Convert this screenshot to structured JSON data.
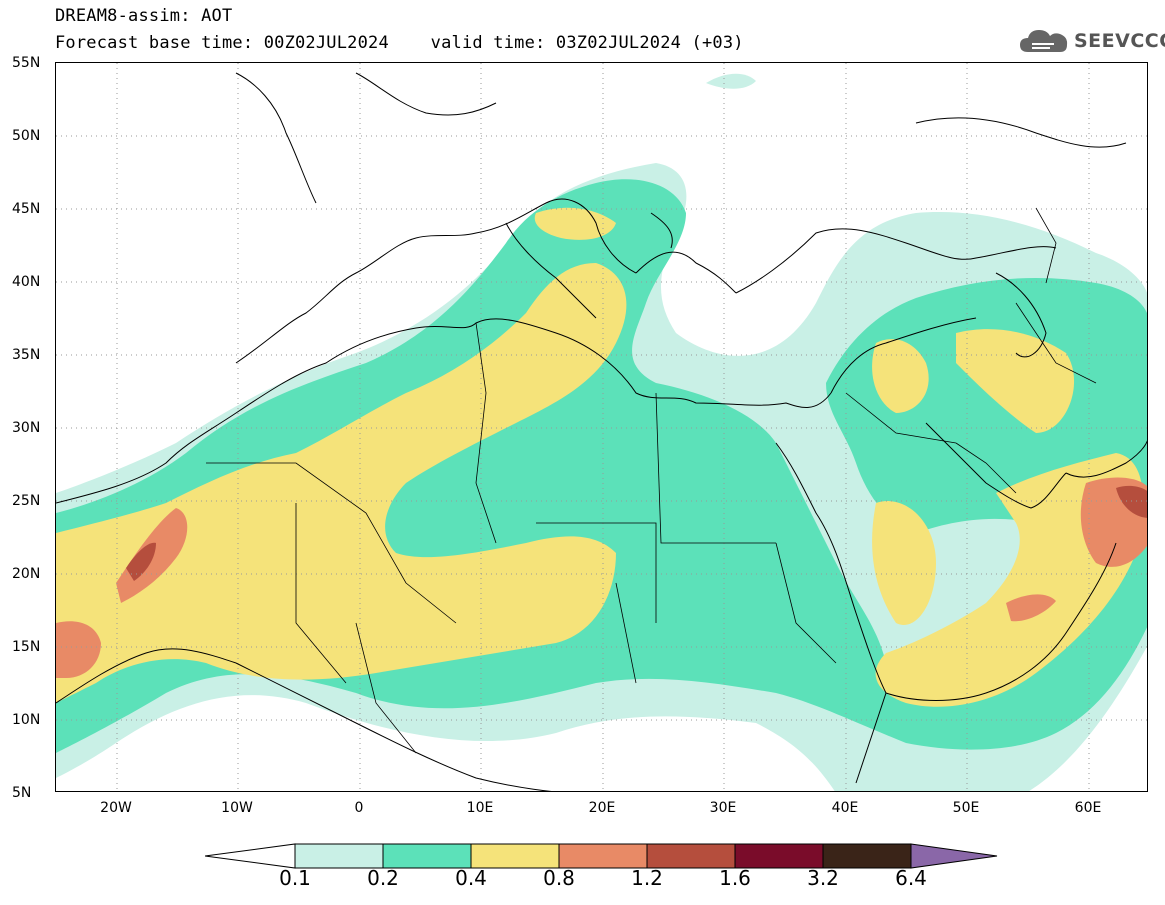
{
  "header": {
    "title": "DREAM8-assim: AOT",
    "base_time": "Forecast base time: 00Z02JUL2024",
    "valid_time": "valid time: 03Z02JUL2024 (+03)"
  },
  "logo": {
    "text": "SEEVCCC",
    "icon": "cloud-icon"
  },
  "map": {
    "variable": "AOT",
    "lon_range": [
      -25,
      65
    ],
    "lat_range": [
      5,
      55
    ],
    "lat_labels": [
      "55N",
      "50N",
      "45N",
      "40N",
      "35N",
      "30N",
      "25N",
      "20N",
      "15N",
      "10N",
      "5N"
    ],
    "lon_labels": [
      "20W",
      "10W",
      "0",
      "10E",
      "20E",
      "30E",
      "40E",
      "50E",
      "60E"
    ],
    "gridlines": "dotted"
  },
  "colorbar": {
    "levels": [
      "0.1",
      "0.2",
      "0.4",
      "0.8",
      "1.2",
      "1.6",
      "3.2",
      "6.4"
    ],
    "colors": [
      "#c9f0e6",
      "#5ce1b9",
      "#f5e37a",
      "#e88a66",
      "#b54e3d",
      "#7a0c2a",
      "#3a2418",
      "#8a67a8"
    ],
    "low_color": "#ffffff"
  }
}
